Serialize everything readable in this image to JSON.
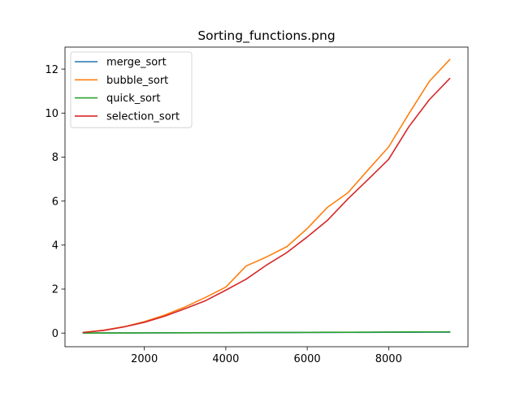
{
  "chart_data": {
    "type": "line",
    "title": "Sorting_functions.png",
    "xlabel": "",
    "ylabel": "",
    "xlim": [
      50,
      9950
    ],
    "ylim": [
      -0.62,
      13.0
    ],
    "xticks": [
      2000,
      4000,
      6000,
      8000
    ],
    "yticks": [
      0,
      2,
      4,
      6,
      8,
      10,
      12
    ],
    "grid": false,
    "legend_position": "upper-left",
    "x": [
      500,
      1000,
      1500,
      2000,
      2500,
      3000,
      3500,
      4000,
      4500,
      5000,
      5500,
      6000,
      6500,
      7000,
      7500,
      8000,
      8500,
      9000,
      9500
    ],
    "series": [
      {
        "name": "merge_sort",
        "color": "#1f77b4",
        "values": [
          0.002,
          0.004,
          0.006,
          0.008,
          0.01,
          0.012,
          0.014,
          0.016,
          0.019,
          0.021,
          0.023,
          0.026,
          0.028,
          0.031,
          0.033,
          0.036,
          0.038,
          0.041,
          0.043
        ]
      },
      {
        "name": "bubble_sort",
        "color": "#ff7f0e",
        "values": [
          0.03,
          0.13,
          0.29,
          0.52,
          0.82,
          1.19,
          1.62,
          2.09,
          3.05,
          3.46,
          3.93,
          4.75,
          5.72,
          6.38,
          7.43,
          8.46,
          9.98,
          11.44,
          12.43
        ]
      },
      {
        "name": "quick_sort",
        "color": "#2ca02c",
        "values": [
          0.002,
          0.004,
          0.006,
          0.009,
          0.012,
          0.015,
          0.018,
          0.021,
          0.024,
          0.027,
          0.03,
          0.033,
          0.036,
          0.039,
          0.043,
          0.047,
          0.05,
          0.054,
          0.058
        ]
      },
      {
        "name": "selection_sort",
        "color": "#d62728",
        "values": [
          0.03,
          0.12,
          0.28,
          0.49,
          0.77,
          1.11,
          1.47,
          1.95,
          2.45,
          3.09,
          3.66,
          4.37,
          5.13,
          6.1,
          6.99,
          7.9,
          9.39,
          10.61,
          11.57
        ]
      }
    ]
  }
}
